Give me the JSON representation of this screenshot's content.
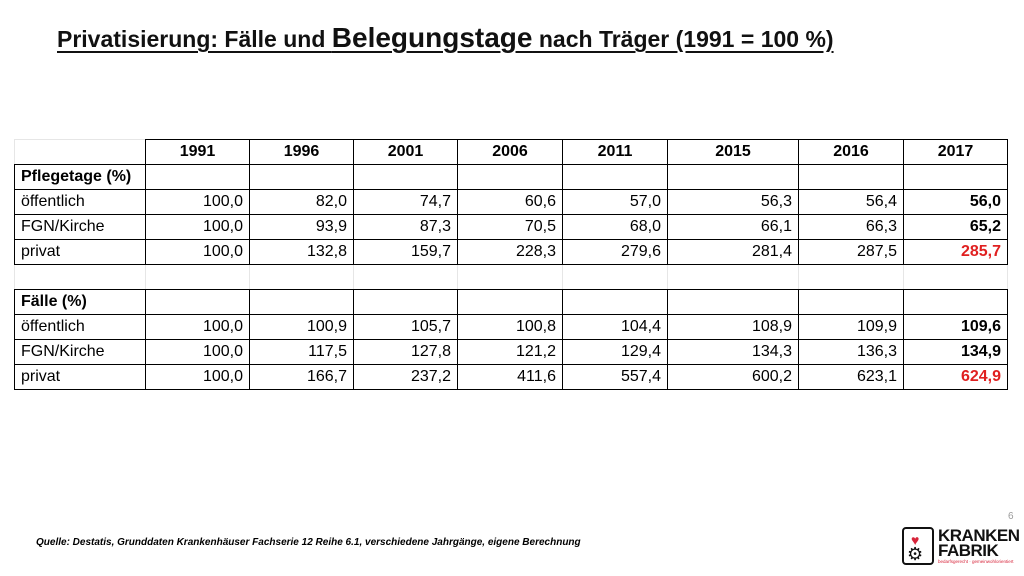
{
  "slide": {
    "title_part1": "Privatisierung: Fälle und ",
    "title_big": "Belegungstage",
    "title_part2": " nach Träger (1991 = 100 %)",
    "page_number": "6",
    "source": "Quelle: Destatis, Grunddaten Krankenhäuser Fachserie 12 Reihe 6.1, verschiedene Jahrgänge, eigene Berechnung"
  },
  "table": {
    "years": [
      "1991",
      "1996",
      "2001",
      "2006",
      "2011",
      "2015",
      "2016",
      "2017"
    ],
    "sections": [
      {
        "title": "Pflegetage (%)",
        "rows": [
          {
            "label": "öffentlich",
            "values": [
              "100,0",
              "82,0",
              "74,7",
              "60,6",
              "57,0",
              "56,3",
              "56,4",
              "56,0"
            ],
            "last_color": "black"
          },
          {
            "label": "FGN/Kirche",
            "values": [
              "100,0",
              "93,9",
              "87,3",
              "70,5",
              "68,0",
              "66,1",
              "66,3",
              "65,2"
            ],
            "last_color": "black"
          },
          {
            "label": "privat",
            "values": [
              "100,0",
              "132,8",
              "159,7",
              "228,3",
              "279,6",
              "281,4",
              "287,5",
              "285,7"
            ],
            "last_color": "#e02020"
          }
        ]
      },
      {
        "title": "Fälle (%)",
        "rows": [
          {
            "label": "öffentlich",
            "values": [
              "100,0",
              "100,9",
              "105,7",
              "100,8",
              "104,4",
              "108,9",
              "109,9",
              "109,6"
            ],
            "last_color": "black"
          },
          {
            "label": "FGN/Kirche",
            "values": [
              "100,0",
              "117,5",
              "127,8",
              "121,2",
              "129,4",
              "134,3",
              "136,3",
              "134,9"
            ],
            "last_color": "black"
          },
          {
            "label": "privat",
            "values": [
              "100,0",
              "166,7",
              "237,2",
              "411,6",
              "557,4",
              "600,2",
              "623,1",
              "624,9"
            ],
            "last_color": "#e02020"
          }
        ]
      }
    ]
  },
  "logo": {
    "line1": "KRANKEN",
    "line2": "FABRIK",
    "tagline": "bedarfsgerecht · gemeinwohlorientiert",
    "heart_color": "#d7243a"
  }
}
